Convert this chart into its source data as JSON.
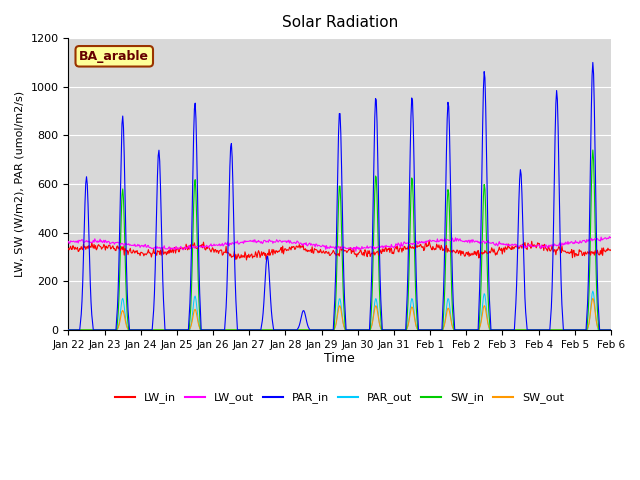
{
  "title": "Solar Radiation",
  "xlabel": "Time",
  "ylabel": "LW, SW (W/m2), PAR (umol/m2/s)",
  "annotation": "BA_arable",
  "n_days": 15,
  "ylim": [
    0,
    1200
  ],
  "yticks": [
    0,
    200,
    400,
    600,
    800,
    1000,
    1200
  ],
  "xtick_labels": [
    "Jan 22",
    "Jan 23",
    "Jan 24",
    "Jan 25",
    "Jan 26",
    "Jan 27",
    "Jan 28",
    "Jan 29",
    "Jan 30",
    "Jan 31",
    "Feb 1",
    "Feb 2",
    "Feb 3",
    "Feb 4",
    "Feb 5",
    "Feb 6"
  ],
  "par_in_peaks": [
    630,
    880,
    740,
    935,
    770,
    305,
    80,
    900,
    960,
    960,
    940,
    1065,
    660,
    985,
    1100
  ],
  "sw_in_peaks": [
    0,
    580,
    0,
    620,
    0,
    0,
    0,
    600,
    640,
    630,
    580,
    600,
    0,
    0,
    740
  ],
  "sw_out_peaks": [
    0,
    80,
    0,
    85,
    0,
    0,
    0,
    100,
    100,
    95,
    90,
    100,
    0,
    0,
    130
  ],
  "par_out_peaks": [
    0,
    130,
    0,
    140,
    0,
    0,
    0,
    130,
    130,
    130,
    130,
    150,
    0,
    0,
    160
  ],
  "colors": {
    "LW_in": "#ff0000",
    "LW_out": "#ff00ff",
    "PAR_in": "#0000ff",
    "PAR_out": "#00ccff",
    "SW_in": "#00cc00",
    "SW_out": "#ff9900"
  },
  "background_color": "#d8d8d8",
  "annotation_bg": "#ffff99",
  "annotation_border": "#993300"
}
